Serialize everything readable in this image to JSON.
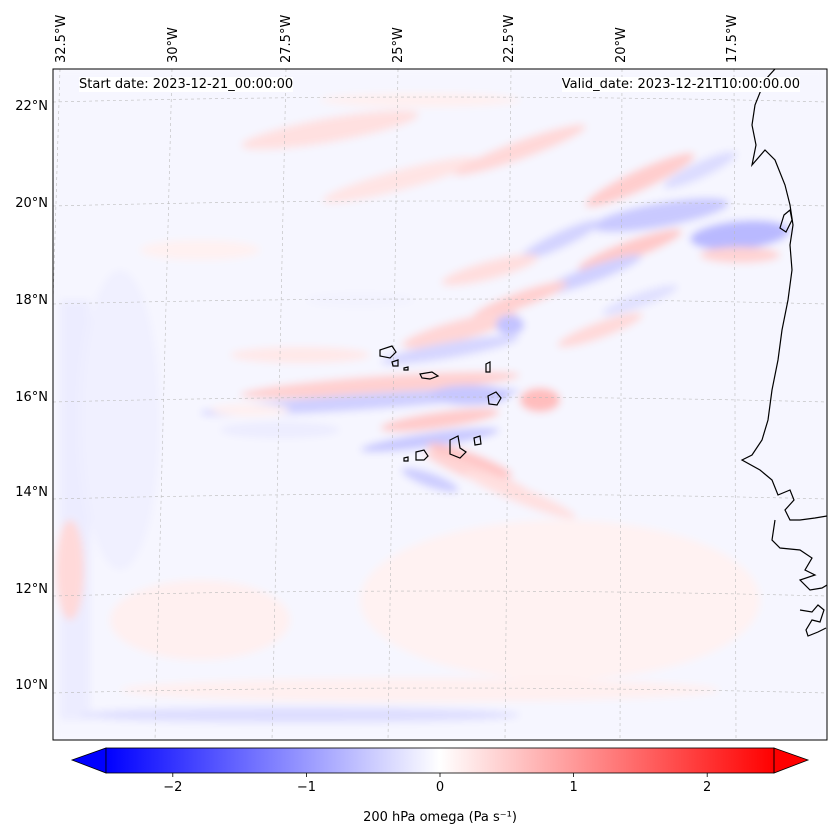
{
  "header": {
    "start_date": "Start date: 2023-12-21_00:00:00",
    "valid_date": "Valid_date: 2023-12-21T10:00:00.00"
  },
  "map": {
    "lon_labels": [
      "32.5°W",
      "30°W",
      "27.5°W",
      "25°W",
      "22.5°W",
      "20°W",
      "17.5°W"
    ],
    "lat_labels": [
      "22°N",
      "20°N",
      "18°N",
      "16°N",
      "14°N",
      "12°N",
      "10°N"
    ],
    "field": "200 hPa omega",
    "units": "Pa s⁻¹"
  },
  "colorbar": {
    "label": "200 hPa omega (Pa s⁻¹)",
    "ticks": [
      "−2",
      "−1",
      "0",
      "1",
      "2"
    ],
    "tick_values": [
      -2,
      -1,
      0,
      1,
      2
    ],
    "range": [
      -2.5,
      2.5
    ],
    "extend": "both",
    "colormap": "bwr",
    "neg_color": "#0000ff",
    "zero_color": "#ffffff",
    "pos_color": "#ff0000"
  }
}
